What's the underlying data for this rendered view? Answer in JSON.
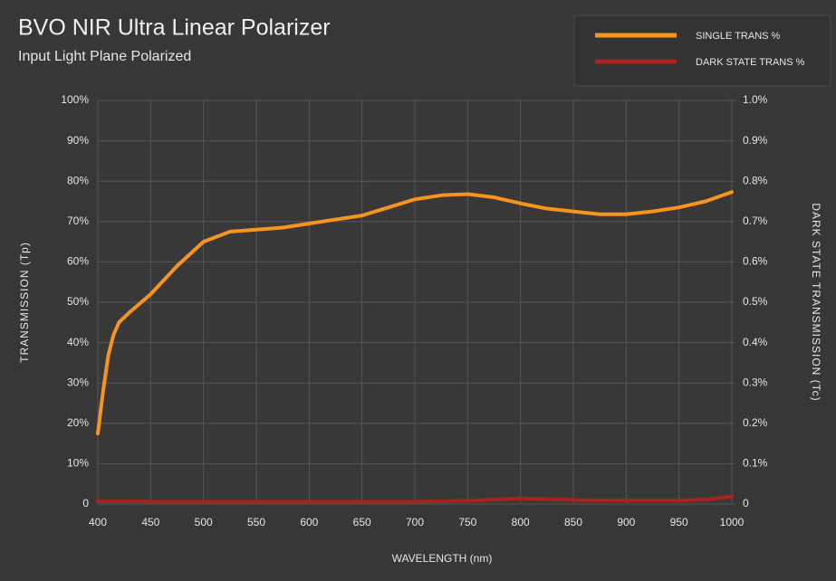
{
  "chart_data": {
    "type": "line",
    "title": "BVO NIR Ultra Linear Polarizer",
    "subtitle": "Input Light Plane Polarized",
    "x_label": "WAVELENGTH (nm)",
    "y_label": "TRANSMISSION (Tp)",
    "y2_label": "DARK STATE TRANSMISSION (Tc)",
    "x": [
      400,
      405,
      410,
      415,
      420,
      430,
      450,
      475,
      500,
      525,
      550,
      575,
      600,
      625,
      650,
      675,
      700,
      725,
      750,
      775,
      800,
      825,
      850,
      875,
      900,
      925,
      950,
      975,
      1000
    ],
    "series": [
      {
        "name": "SINGLE TRANS %",
        "color": "#f7941d",
        "axis": "y",
        "values": [
          17.5,
          28,
          37,
          42,
          45,
          47.5,
          52,
          59,
          65,
          67.5,
          68,
          68.5,
          69.5,
          70.5,
          71.5,
          73.5,
          75.5,
          76.5,
          76.8,
          76,
          74.5,
          73.2,
          72.5,
          71.8,
          71.8,
          72.5,
          73.5,
          75,
          77.3
        ]
      },
      {
        "name": "DARK STATE TRANS %",
        "color": "#a8231f",
        "axis": "y2",
        "values": [
          0.007,
          0.007,
          0.007,
          0.007,
          0.007,
          0.007,
          0.006,
          0.006,
          0.006,
          0.006,
          0.006,
          0.006,
          0.006,
          0.006,
          0.006,
          0.006,
          0.006,
          0.007,
          0.008,
          0.011,
          0.014,
          0.012,
          0.01,
          0.009,
          0.009,
          0.009,
          0.009,
          0.011,
          0.019
        ]
      }
    ],
    "xlim": [
      400,
      1000
    ],
    "xticks": [
      400,
      450,
      500,
      550,
      600,
      650,
      700,
      750,
      800,
      850,
      900,
      950,
      1000
    ],
    "ylim": [
      0,
      100
    ],
    "yticks": [
      {
        "value": 0,
        "label": "0"
      },
      {
        "value": 10,
        "label": "10%"
      },
      {
        "value": 20,
        "label": "20%"
      },
      {
        "value": 30,
        "label": "30%"
      },
      {
        "value": 40,
        "label": "40%"
      },
      {
        "value": 50,
        "label": "50%"
      },
      {
        "value": 60,
        "label": "60%"
      },
      {
        "value": 70,
        "label": "70%"
      },
      {
        "value": 80,
        "label": "80%"
      },
      {
        "value": 90,
        "label": "90%"
      },
      {
        "value": 100,
        "label": "100%"
      }
    ],
    "y2lim": [
      0,
      1.0
    ],
    "y2ticks": [
      {
        "value": 0,
        "label": "0"
      },
      {
        "value": 0.1,
        "label": "0.1%"
      },
      {
        "value": 0.2,
        "label": "0.2%"
      },
      {
        "value": 0.3,
        "label": "0.3%"
      },
      {
        "value": 0.4,
        "label": "0.4%"
      },
      {
        "value": 0.5,
        "label": "0.5%"
      },
      {
        "value": 0.6,
        "label": "0.6%"
      },
      {
        "value": 0.7,
        "label": "0.7%"
      },
      {
        "value": 0.8,
        "label": "0.8%"
      },
      {
        "value": 0.9,
        "label": "0.9%"
      },
      {
        "value": 1.0,
        "label": "1.0%"
      }
    ],
    "grid": true
  }
}
